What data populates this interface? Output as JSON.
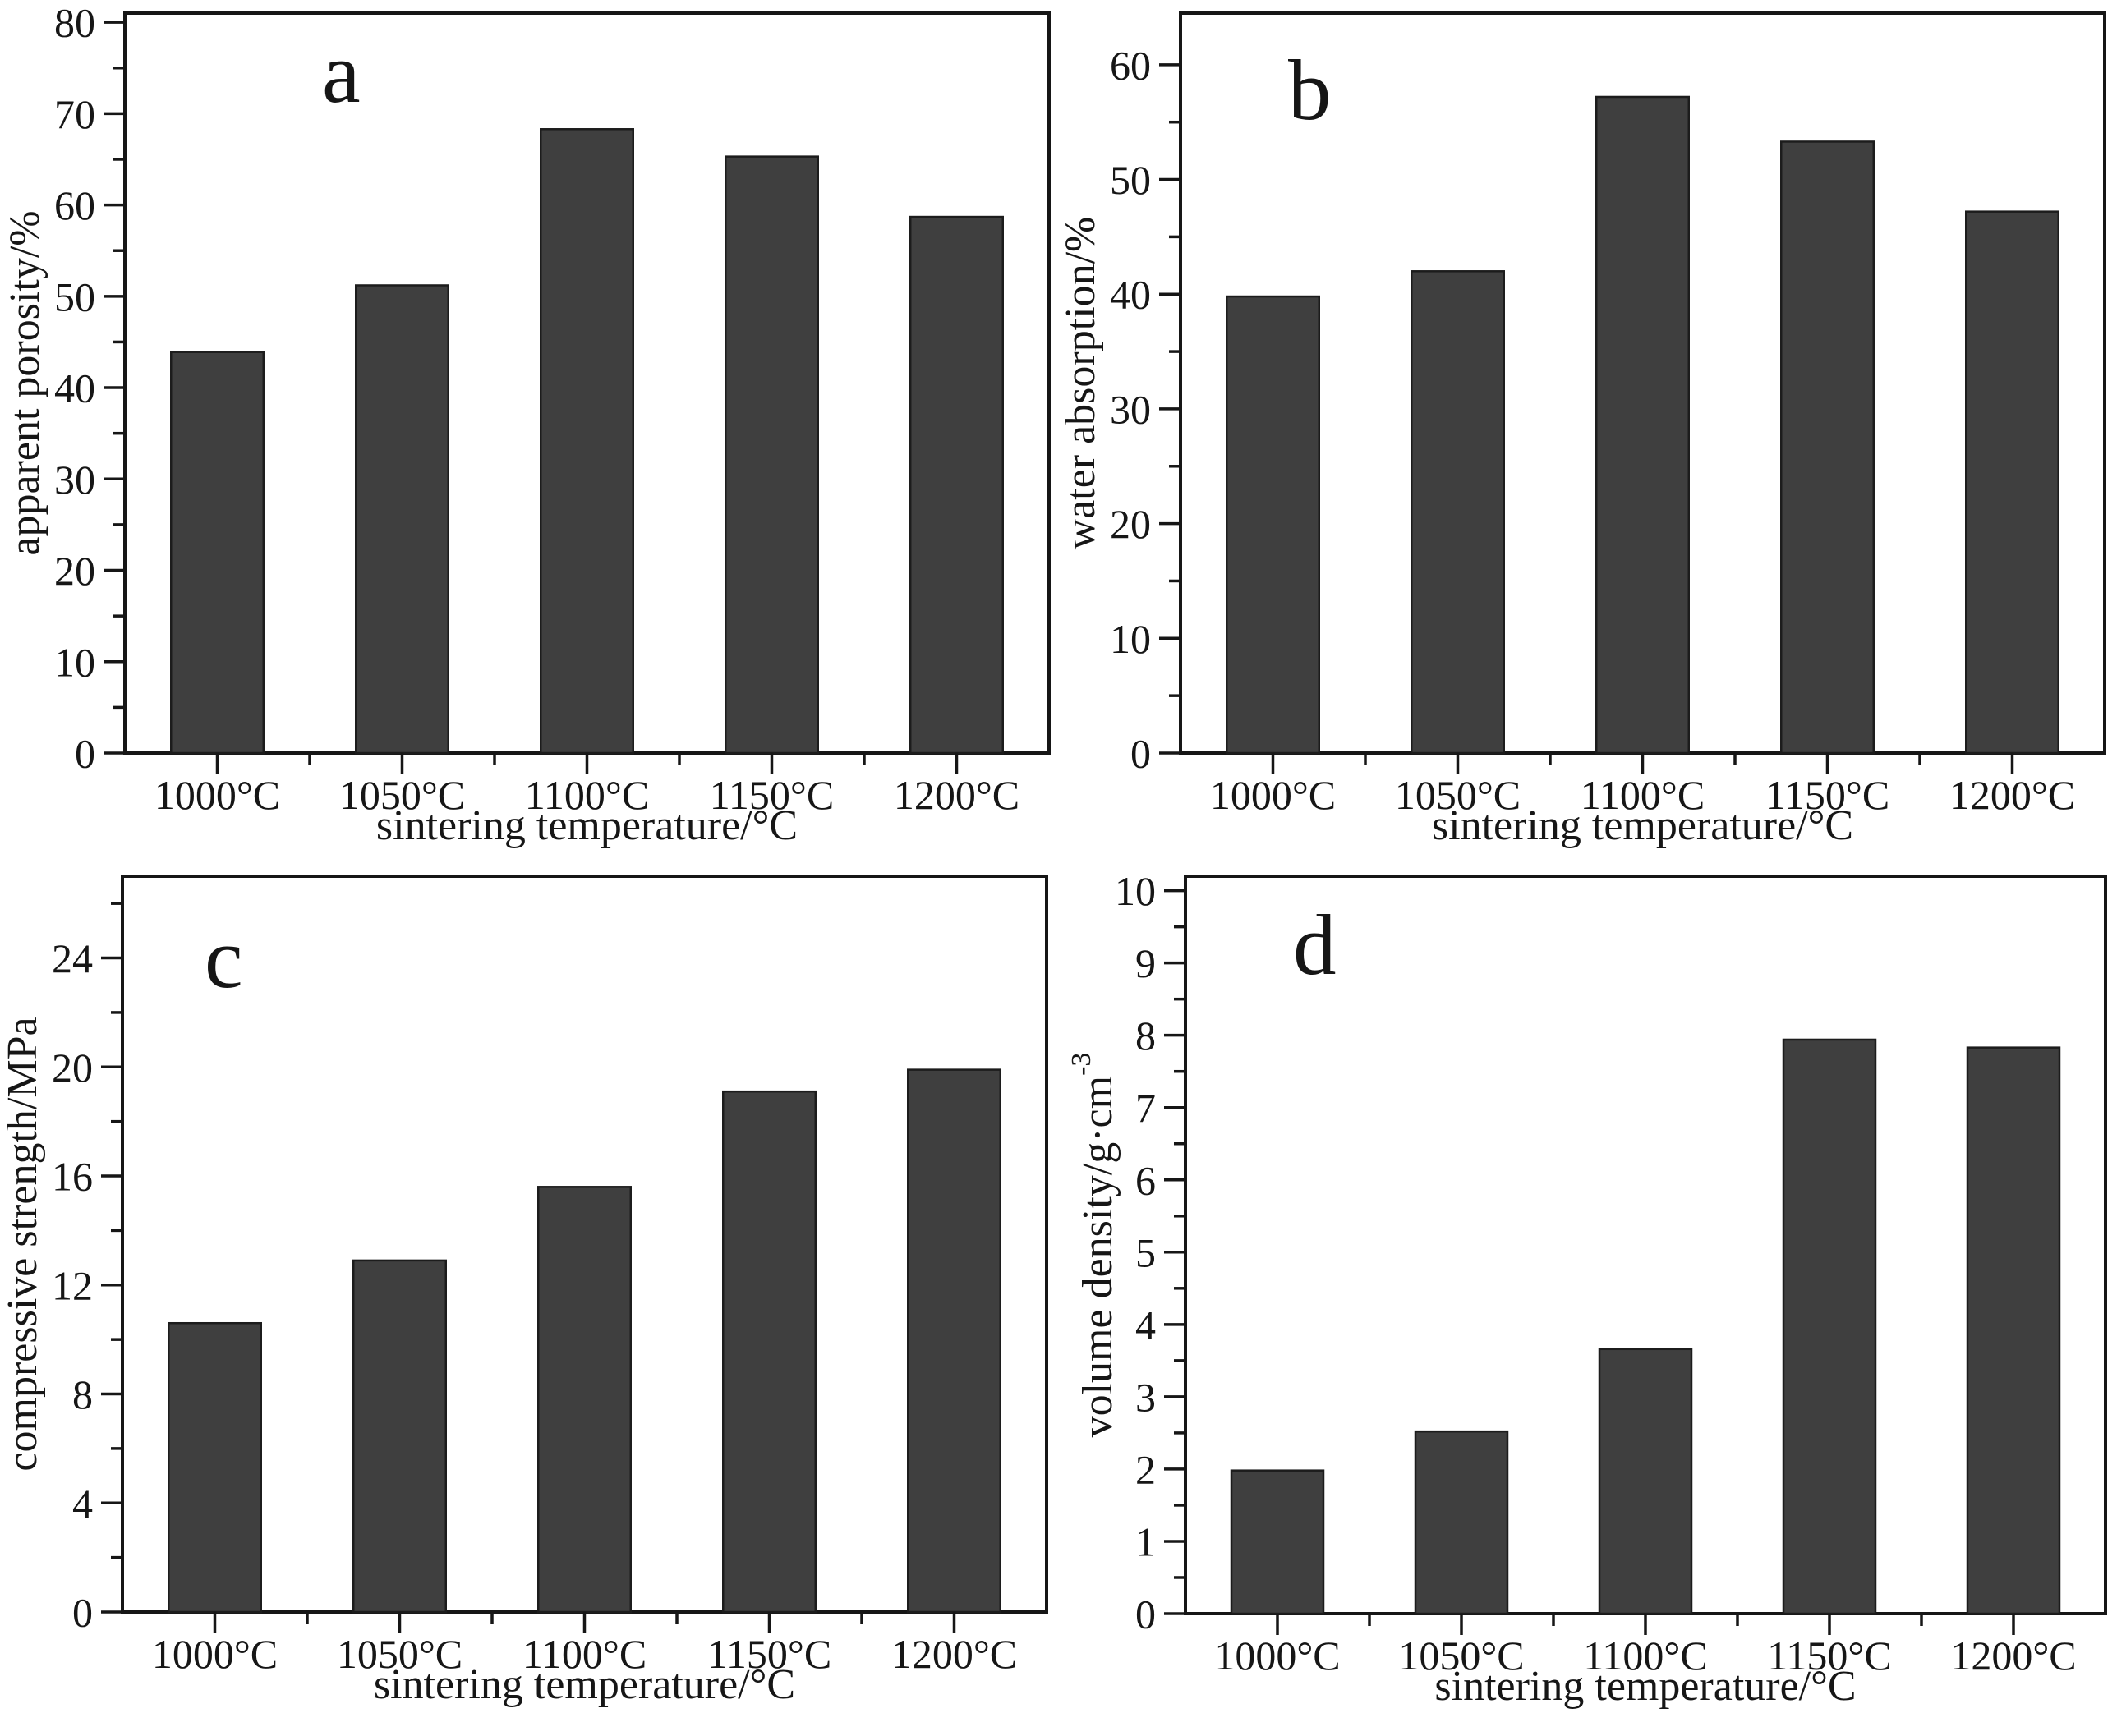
{
  "styles": {
    "background": "#ffffff",
    "bar_fill": "#3f3f3f",
    "bar_edge": "#1c1c1c",
    "axis_color": "#161616",
    "text_color": "#161616"
  },
  "chart_data": [
    {
      "type": "bar",
      "panel_letter": "a",
      "categories": [
        "1000°C",
        "1050°C",
        "1100°C",
        "1150°C",
        "1200°C"
      ],
      "values": [
        43.9,
        51.2,
        68.3,
        65.3,
        58.7
      ],
      "xlabel": "sintering temperature/°C",
      "ylabel": "apparent porosity/%",
      "ylim": [
        0,
        81
      ],
      "yticks": [
        0,
        10,
        20,
        30,
        40,
        50,
        60,
        70,
        80
      ],
      "ytick_minor_step": 5,
      "grid": false,
      "legend": "none",
      "bar_color": "#3f3f3f"
    },
    {
      "type": "bar",
      "panel_letter": "b",
      "categories": [
        "1000°C",
        "1050°C",
        "1100°C",
        "1150°C",
        "1200°C"
      ],
      "values": [
        39.8,
        42.0,
        57.2,
        53.3,
        47.2
      ],
      "xlabel": "sintering temperature/°C",
      "ylabel": "water absorption/%",
      "ylim": [
        0,
        64.5
      ],
      "yticks": [
        0,
        10,
        20,
        30,
        40,
        50,
        60
      ],
      "ytick_minor_step": 5,
      "grid": false,
      "legend": "none",
      "bar_color": "#3f3f3f"
    },
    {
      "type": "bar",
      "panel_letter": "c",
      "categories": [
        "1000°C",
        "1050°C",
        "1100°C",
        "1150°C",
        "1200°C"
      ],
      "values": [
        10.6,
        12.9,
        15.6,
        19.1,
        19.9
      ],
      "xlabel": "sintering temperature/°C",
      "ylabel": "compressive strength/MPa",
      "ylim": [
        0,
        27
      ],
      "yticks": [
        0,
        4,
        8,
        12,
        16,
        20,
        24
      ],
      "ytick_minor_step": 2,
      "grid": false,
      "legend": "none",
      "bar_color": "#3f3f3f"
    },
    {
      "type": "bar",
      "panel_letter": "d",
      "categories": [
        "1000°C",
        "1050°C",
        "1100°C",
        "1150°C",
        "1200°C"
      ],
      "values": [
        1.98,
        2.52,
        3.66,
        7.94,
        7.83
      ],
      "xlabel": "sintering temperature/°C",
      "ylabel": "volume density/g·cm⁻³",
      "ylim": [
        0,
        10.2
      ],
      "yticks": [
        0,
        1,
        2,
        3,
        4,
        5,
        6,
        7,
        8,
        9,
        10
      ],
      "ytick_minor_step": 0.5,
      "grid": false,
      "legend": "none",
      "bar_color": "#3f3f3f"
    }
  ]
}
